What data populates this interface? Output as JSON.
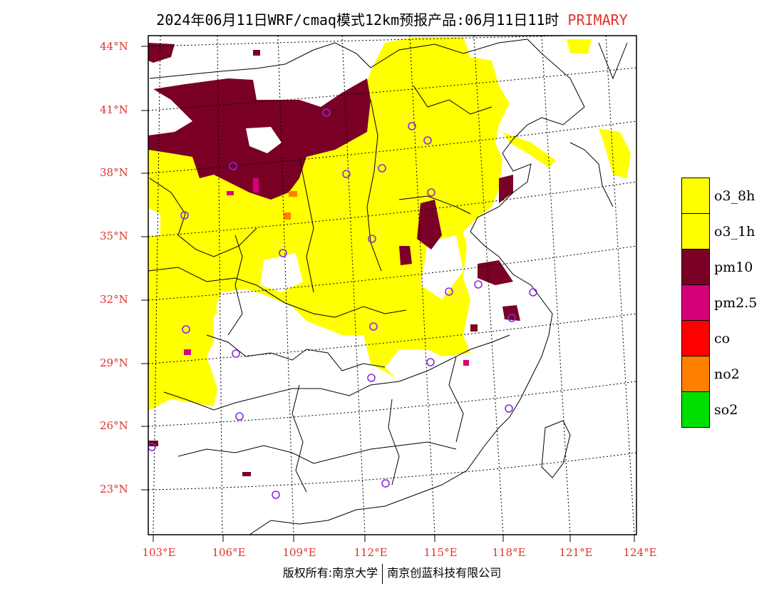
{
  "title": {
    "main": "2024年06月11日WRF/cmaq模式12km预报产品:06月11日11时",
    "product": "PRIMARY"
  },
  "axes": {
    "lat_labels": [
      "44°N",
      "41°N",
      "38°N",
      "35°N",
      "32°N",
      "29°N",
      "26°N",
      "23°N"
    ],
    "lon_labels": [
      "103°E",
      "106°E",
      "109°E",
      "112°E",
      "115°E",
      "118°E",
      "121°E",
      "124°E"
    ]
  },
  "legend": {
    "items": [
      {
        "label": "o3_8h",
        "color": "#ffff00"
      },
      {
        "label": "o3_1h",
        "color": "#ffff00"
      },
      {
        "label": "pm10",
        "color": "#7a0026"
      },
      {
        "label": "pm2.5",
        "color": "#d6007a"
      },
      {
        "label": "co",
        "color": "#ff0000"
      },
      {
        "label": "no2",
        "color": "#ff8000"
      },
      {
        "label": "so2",
        "color": "#00e000"
      }
    ]
  },
  "colors": {
    "o3": "#ffff00",
    "pm10": "#7a0026",
    "pm25": "#d6007a",
    "no2": "#ff8000",
    "station": "#8a2be2",
    "label": "#e0322d"
  },
  "copyright": {
    "left": "版权所有:南京大学",
    "right": "南京创蓝科技有限公司"
  }
}
